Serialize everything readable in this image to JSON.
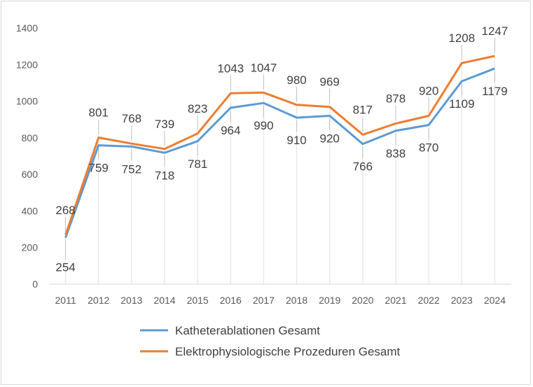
{
  "chart_data": {
    "type": "line",
    "title": "",
    "xlabel": "",
    "ylabel": "",
    "ylim": [
      0,
      1400
    ],
    "yticks": [
      0,
      200,
      400,
      600,
      800,
      1000,
      1200,
      1400
    ],
    "categories": [
      "2011",
      "2012",
      "2013",
      "2014",
      "2015",
      "2016",
      "2017",
      "2018",
      "2019",
      "2020",
      "2021",
      "2022",
      "2023",
      "2024"
    ],
    "grid": false,
    "drop_lines": true,
    "legend_position": "bottom",
    "series": [
      {
        "name": "Katheterablationen Gesamt",
        "color": "#5b9bd5",
        "values": [
          254,
          759,
          752,
          718,
          781,
          964,
          990,
          910,
          920,
          766,
          838,
          870,
          1109,
          1179
        ]
      },
      {
        "name": "Elektrophysiologische Prozeduren Gesamt",
        "color": "#ed7d31",
        "values": [
          268,
          801,
          768,
          739,
          823,
          1043,
          1047,
          980,
          969,
          817,
          878,
          920,
          1208,
          1247
        ]
      }
    ]
  }
}
